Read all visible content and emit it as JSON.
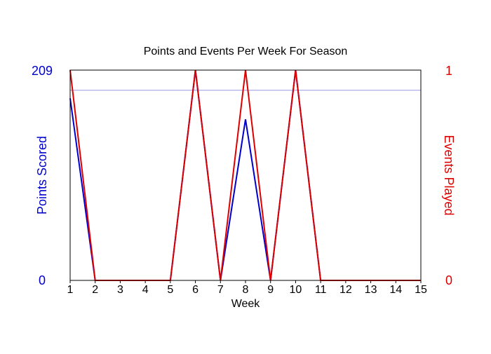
{
  "chart_data": {
    "type": "line",
    "title": "Points and Events Per Week For Season",
    "xlabel": "Week",
    "ylabel_left": "Points Scored",
    "ylabel_right": "Events Played",
    "x": [
      1,
      2,
      3,
      4,
      5,
      6,
      7,
      8,
      9,
      10,
      11,
      12,
      13,
      14,
      15
    ],
    "x_tick_labels": [
      "1",
      "2",
      "3",
      "4",
      "5",
      "6",
      "7",
      "8",
      "9",
      "10",
      "11",
      "12",
      "13",
      "14",
      "15"
    ],
    "ylim_left": [
      0,
      209
    ],
    "ylim_right": [
      0,
      1
    ],
    "left_tick_labels": [
      "0",
      "209"
    ],
    "right_tick_labels": [
      "0",
      "1"
    ],
    "reference_line": {
      "axis": "left",
      "value": 189
    },
    "series": [
      {
        "axis": "left",
        "color": "#0000cc",
        "values": [
          181,
          0,
          0,
          0,
          0,
          209,
          0,
          160,
          0,
          209,
          0,
          0,
          0,
          0,
          0
        ]
      },
      {
        "axis": "right",
        "color": "#dd0000",
        "values": [
          1,
          0,
          0,
          0,
          0,
          1,
          0,
          1,
          0,
          1,
          0,
          0,
          0,
          0,
          0
        ]
      }
    ],
    "colors": {
      "left_axis": "#0000cc",
      "right_axis": "#dd0000",
      "reference_line": "#9999dd",
      "frame": "#000000"
    },
    "grid": false
  }
}
